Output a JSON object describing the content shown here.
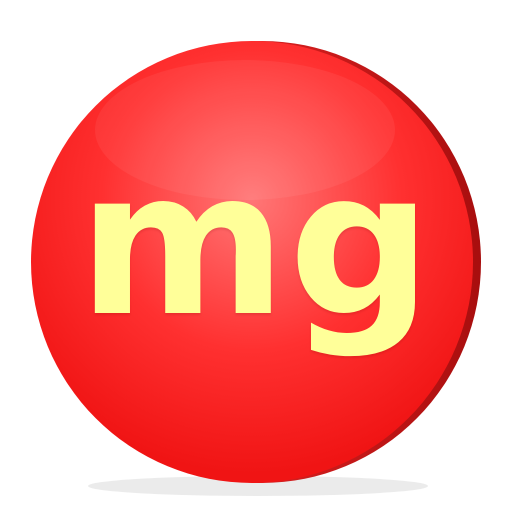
{
  "badge": {
    "label": "mg",
    "colors": {
      "fill": "#ff1f1f",
      "highlight": "#ff7a7a",
      "rim": "#c81818",
      "text": "#ffff99"
    }
  }
}
